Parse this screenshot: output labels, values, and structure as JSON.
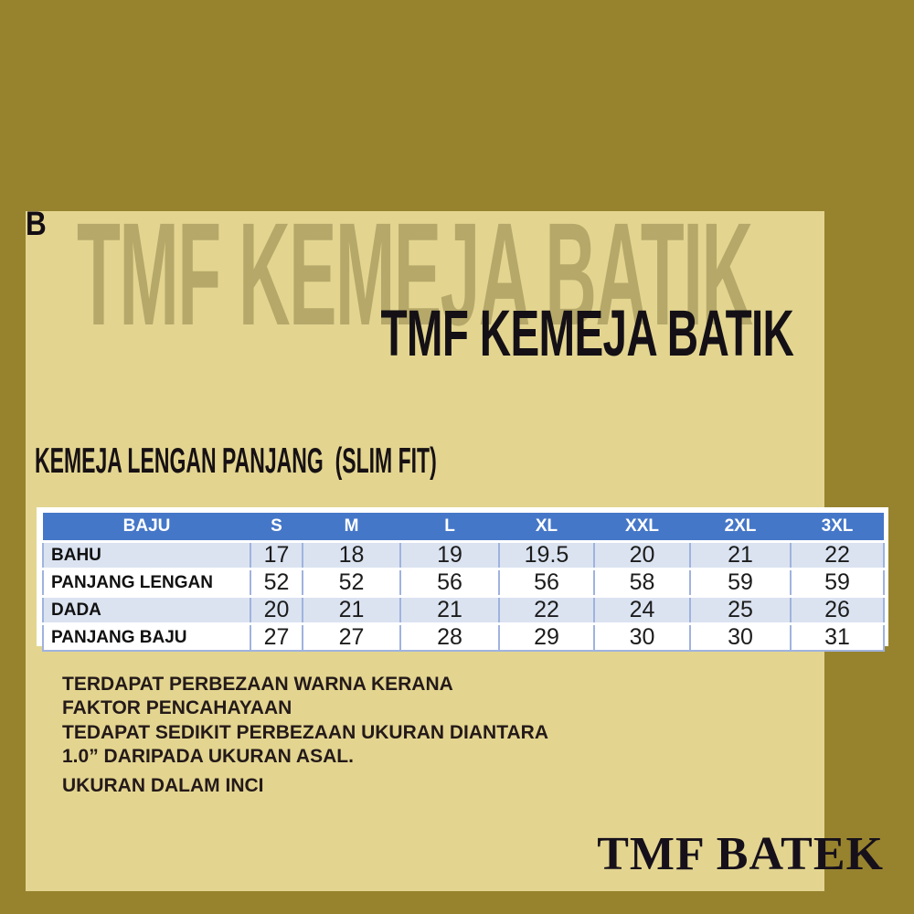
{
  "page": {
    "corner_label": "B"
  },
  "watermark": {
    "text": "TMF KEMEJA BATIK"
  },
  "header": {
    "title": "TMF KEMEJA BATIK"
  },
  "section": {
    "heading": "KEMEJA LENGAN PANJANG  (SLIM FIT)"
  },
  "size_chart": {
    "type": "table",
    "columns": [
      "BAJU",
      "S",
      "M",
      "L",
      "XL",
      "XXL",
      "2XL",
      "3XL"
    ],
    "rows": [
      {
        "label": "BAHU",
        "values": [
          "17",
          "18",
          "19",
          "19.5",
          "20",
          "21",
          "22"
        ]
      },
      {
        "label": "PANJANG LENGAN",
        "values": [
          "52",
          "52",
          "56",
          "56",
          "58",
          "59",
          "59"
        ]
      },
      {
        "label": "DADA",
        "values": [
          "20",
          "21",
          "21",
          "22",
          "24",
          "25",
          "26"
        ]
      },
      {
        "label": "PANJANG BAJU",
        "values": [
          "27",
          "27",
          "28",
          "29",
          "30",
          "30",
          "31"
        ]
      }
    ]
  },
  "notes": [
    {
      "lines": [
        "TERDAPAT PERBEZAAN WARNA KERANA",
        "FAKTOR PENCAHAYAAN"
      ]
    },
    {
      "lines": [
        "TEDAPAT SEDIKIT PERBEZAAN UKURAN DIANTARA",
        "1.0” DARIPADA UKURAN ASAL."
      ]
    },
    {
      "lines": [
        "UKURAN DALAM INCI"
      ]
    }
  ],
  "brand": {
    "logo_text": "TMF BATEK"
  },
  "colors": {
    "background": "#97832e",
    "panel": "#e3d590",
    "watermark": "#b5a869",
    "table_header_bg": "#4577c8",
    "table_header_text": "#ffffff",
    "table_row_alt": "#dbe3f1",
    "table_grid": "#9fb3de",
    "text": "#171114"
  }
}
